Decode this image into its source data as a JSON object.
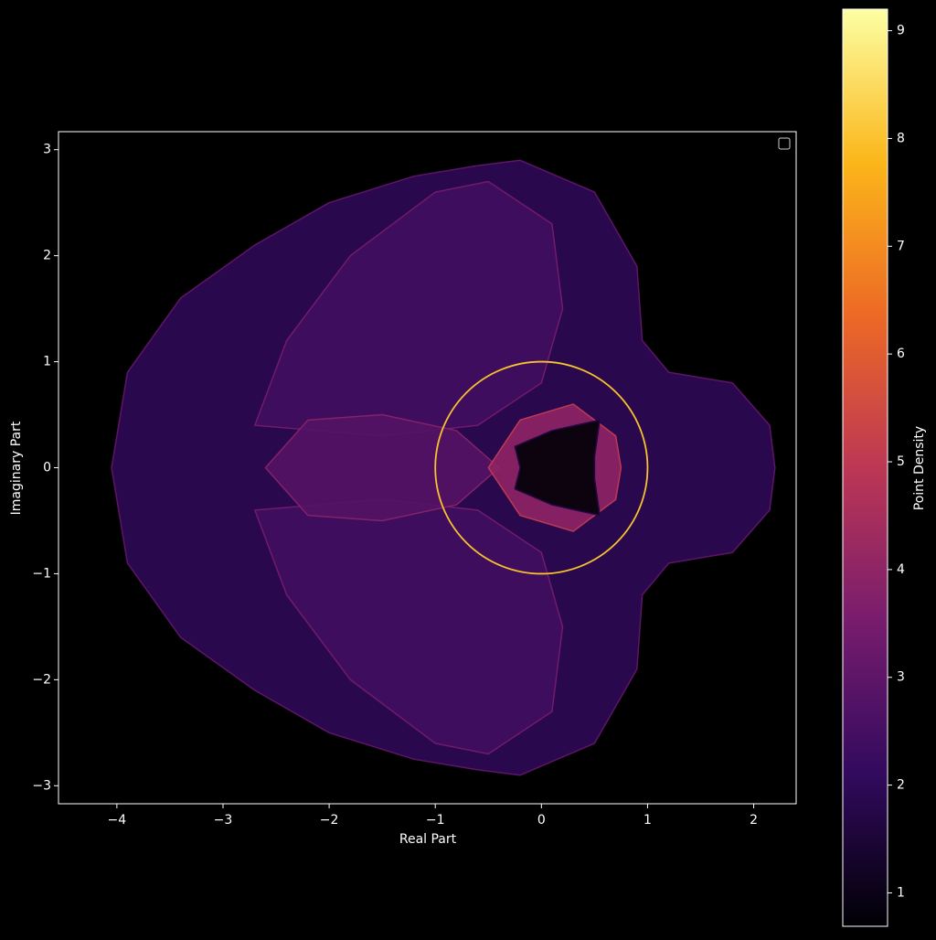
{
  "chart_data": {
    "type": "density",
    "xlabel": "Real Part",
    "ylabel": "Imaginary Part",
    "xlim": [
      -4.55,
      2.4
    ],
    "ylim": [
      -3.17,
      3.17
    ],
    "xticks": [
      {
        "value": -4,
        "label": "−4"
      },
      {
        "value": -3,
        "label": "−3"
      },
      {
        "value": -2,
        "label": "−2"
      },
      {
        "value": -1,
        "label": "−1"
      },
      0,
      1,
      2
    ],
    "yticks": [
      {
        "value": -3,
        "label": "−3"
      },
      {
        "value": -2,
        "label": "−2"
      },
      {
        "value": -1,
        "label": "−1"
      },
      0,
      1,
      2,
      3
    ],
    "regions": [
      {
        "density": 2.0,
        "x": [
          -4.05,
          -3.9,
          -3.4,
          -2.7,
          -2.0,
          -1.2,
          -0.6,
          -0.2,
          0.5,
          0.9,
          0.95,
          1.2,
          1.8,
          2.15,
          2.2,
          2.15,
          1.8,
          1.2,
          0.95,
          0.9,
          0.5,
          -0.2,
          -0.6,
          -1.2,
          -2.0,
          -2.7,
          -3.4,
          -3.9
        ],
        "y": [
          0,
          0.9,
          1.6,
          2.1,
          2.5,
          2.75,
          2.85,
          2.9,
          2.6,
          1.9,
          1.2,
          0.9,
          0.8,
          0.4,
          0,
          -0.4,
          -0.8,
          -0.9,
          -1.2,
          -1.9,
          -2.6,
          -2.9,
          -2.85,
          -2.75,
          -2.5,
          -2.1,
          -1.6,
          -0.9
        ]
      },
      {
        "density": 2.4,
        "x": [
          -2.7,
          -2.4,
          -1.8,
          -1.0,
          -0.5,
          0.1,
          0.2,
          0.0,
          -0.6,
          -1.5
        ],
        "y": [
          0.4,
          1.2,
          2.0,
          2.6,
          2.7,
          2.3,
          1.5,
          0.8,
          0.4,
          0.3
        ]
      },
      {
        "density": 2.4,
        "x": [
          -2.7,
          -2.4,
          -1.8,
          -1.0,
          -0.5,
          0.1,
          0.2,
          0.0,
          -0.6,
          -1.5
        ],
        "y": [
          -0.4,
          -1.2,
          -2.0,
          -2.6,
          -2.7,
          -2.3,
          -1.5,
          -0.8,
          -0.4,
          -0.3
        ]
      },
      {
        "density": 2.8,
        "x": [
          -2.6,
          -2.2,
          -1.5,
          -0.8,
          -0.4,
          -0.8,
          -1.5,
          -2.2
        ],
        "y": [
          0,
          0.45,
          0.5,
          0.35,
          0,
          -0.35,
          -0.5,
          -0.45
        ]
      },
      {
        "density": 4.0,
        "x": [
          -0.5,
          -0.2,
          0.3,
          0.7,
          0.75,
          0.7,
          0.3,
          -0.2
        ],
        "y": [
          0,
          0.45,
          0.6,
          0.3,
          0,
          -0.3,
          -0.6,
          -0.45
        ]
      },
      {
        "density": 0.7,
        "x": [
          -0.25,
          0.1,
          0.55,
          0.5,
          0.5,
          0.55,
          0.1,
          -0.25,
          -0.2
        ],
        "y": [
          0.2,
          0.35,
          0.45,
          0.1,
          -0.1,
          -0.45,
          -0.35,
          -0.2,
          0
        ]
      }
    ],
    "circle": {
      "center": [
        0,
        0
      ],
      "radius": 1,
      "color": "#f9c22e"
    },
    "colormap": [
      "#000004",
      "#320a5e",
      "#781c6d",
      "#bc3754",
      "#ed6925",
      "#fbb61a",
      "#fcffa4"
    ],
    "colorbar": {
      "label": "Point Density",
      "lim": [
        0.69,
        9.2
      ],
      "ticks": [
        1,
        2,
        3,
        4,
        5,
        6,
        7,
        8,
        9
      ]
    }
  }
}
